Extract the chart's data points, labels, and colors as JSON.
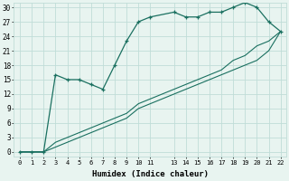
{
  "xlabel": "Humidex (Indice chaleur)",
  "bg_color": "#e8f4f0",
  "grid_color": "#c0ddd8",
  "line_color": "#1a7060",
  "xlim": [
    -0.5,
    22.5
  ],
  "ylim": [
    -1,
    31
  ],
  "xticks": [
    0,
    1,
    2,
    3,
    4,
    5,
    6,
    7,
    8,
    9,
    10,
    11,
    13,
    14,
    15,
    16,
    17,
    18,
    19,
    20,
    21,
    22
  ],
  "yticks": [
    0,
    3,
    6,
    9,
    12,
    15,
    18,
    21,
    24,
    27,
    30
  ],
  "series1_x": [
    0,
    1,
    2,
    3,
    4,
    5,
    6,
    7,
    8,
    9,
    10,
    11,
    13,
    14,
    15,
    16,
    17,
    18,
    19,
    20,
    21,
    22
  ],
  "series1_y": [
    0,
    0,
    0,
    16,
    15,
    15,
    14,
    13,
    18,
    23,
    27,
    28,
    29,
    28,
    28,
    29,
    29,
    30,
    31,
    30,
    27,
    25
  ],
  "series2_x": [
    0,
    1,
    2,
    3,
    4,
    5,
    6,
    7,
    8,
    9,
    10,
    11,
    13,
    14,
    15,
    16,
    17,
    18,
    19,
    20,
    21,
    22
  ],
  "series2_y": [
    0,
    0,
    0,
    1,
    2,
    3,
    4,
    5,
    6,
    7,
    9,
    10,
    12,
    13,
    14,
    15,
    16,
    17,
    18,
    19,
    21,
    25
  ],
  "series3_x": [
    0,
    1,
    2,
    3,
    4,
    5,
    6,
    7,
    8,
    9,
    10,
    11,
    13,
    14,
    15,
    16,
    17,
    18,
    19,
    20,
    21,
    22
  ],
  "series3_y": [
    0,
    0,
    0,
    2,
    3,
    4,
    5,
    6,
    7,
    8,
    10,
    11,
    13,
    14,
    15,
    16,
    17,
    19,
    20,
    22,
    23,
    25
  ]
}
